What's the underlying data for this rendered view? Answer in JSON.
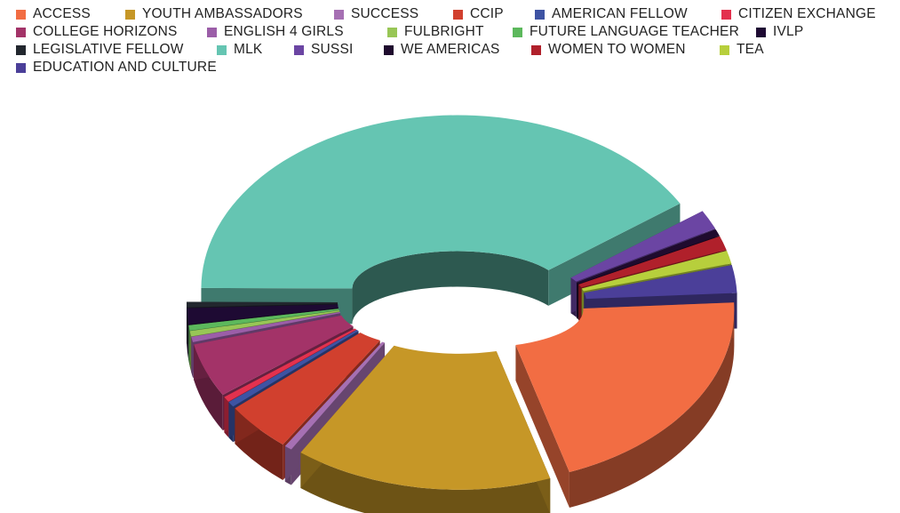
{
  "chart_data": {
    "type": "pie",
    "variant": "3d-donut",
    "legend_placement": "top",
    "slices": [
      {
        "label": "ACCESS",
        "value": 20.0,
        "color": "#f26d43"
      },
      {
        "label": "YOUTH AMBASSADORS",
        "value": 16.5,
        "color": "#c69727"
      },
      {
        "label": "SUCCESS",
        "value": 0.5,
        "color": "#a670b3"
      },
      {
        "label": "CCIP",
        "value": 4.5,
        "color": "#d1402e"
      },
      {
        "label": "AMERICAN FELLOW",
        "value": 0.5,
        "color": "#3e53a3"
      },
      {
        "label": "CITIZEN EXCHANGE",
        "value": 0.5,
        "color": "#e3314e"
      },
      {
        "label": "COLLEGE HORIZONS",
        "value": 5.0,
        "color": "#a33368"
      },
      {
        "label": "ENGLISH 4 GIRLS",
        "value": 0.5,
        "color": "#9b5ea8"
      },
      {
        "label": "FULBRIGHT",
        "value": 0.5,
        "color": "#98c656"
      },
      {
        "label": "FUTURE LANGUAGE TEACHER",
        "value": 0.5,
        "color": "#5cb85c"
      },
      {
        "label": "IVLP",
        "value": 1.5,
        "color": "#1e0a33"
      },
      {
        "label": "LEGISLATIVE FELLOW",
        "value": 0.5,
        "color": "#22272e"
      },
      {
        "label": "MLK",
        "value": 42.0,
        "color": "#65c5b2"
      },
      {
        "label": "SUSSI",
        "value": 1.8,
        "color": "#6b45a3"
      },
      {
        "label": "WE AMERICAS",
        "value": 0.6,
        "color": "#1f0b2e"
      },
      {
        "label": "WOMEN TO WOMEN",
        "value": 1.3,
        "color": "#b0202b"
      },
      {
        "label": "TEA",
        "value": 1.2,
        "color": "#b7cf3c"
      },
      {
        "label": "EDUCATION AND CULTURE",
        "value": 2.6,
        "color": "#4b3f99"
      }
    ]
  }
}
